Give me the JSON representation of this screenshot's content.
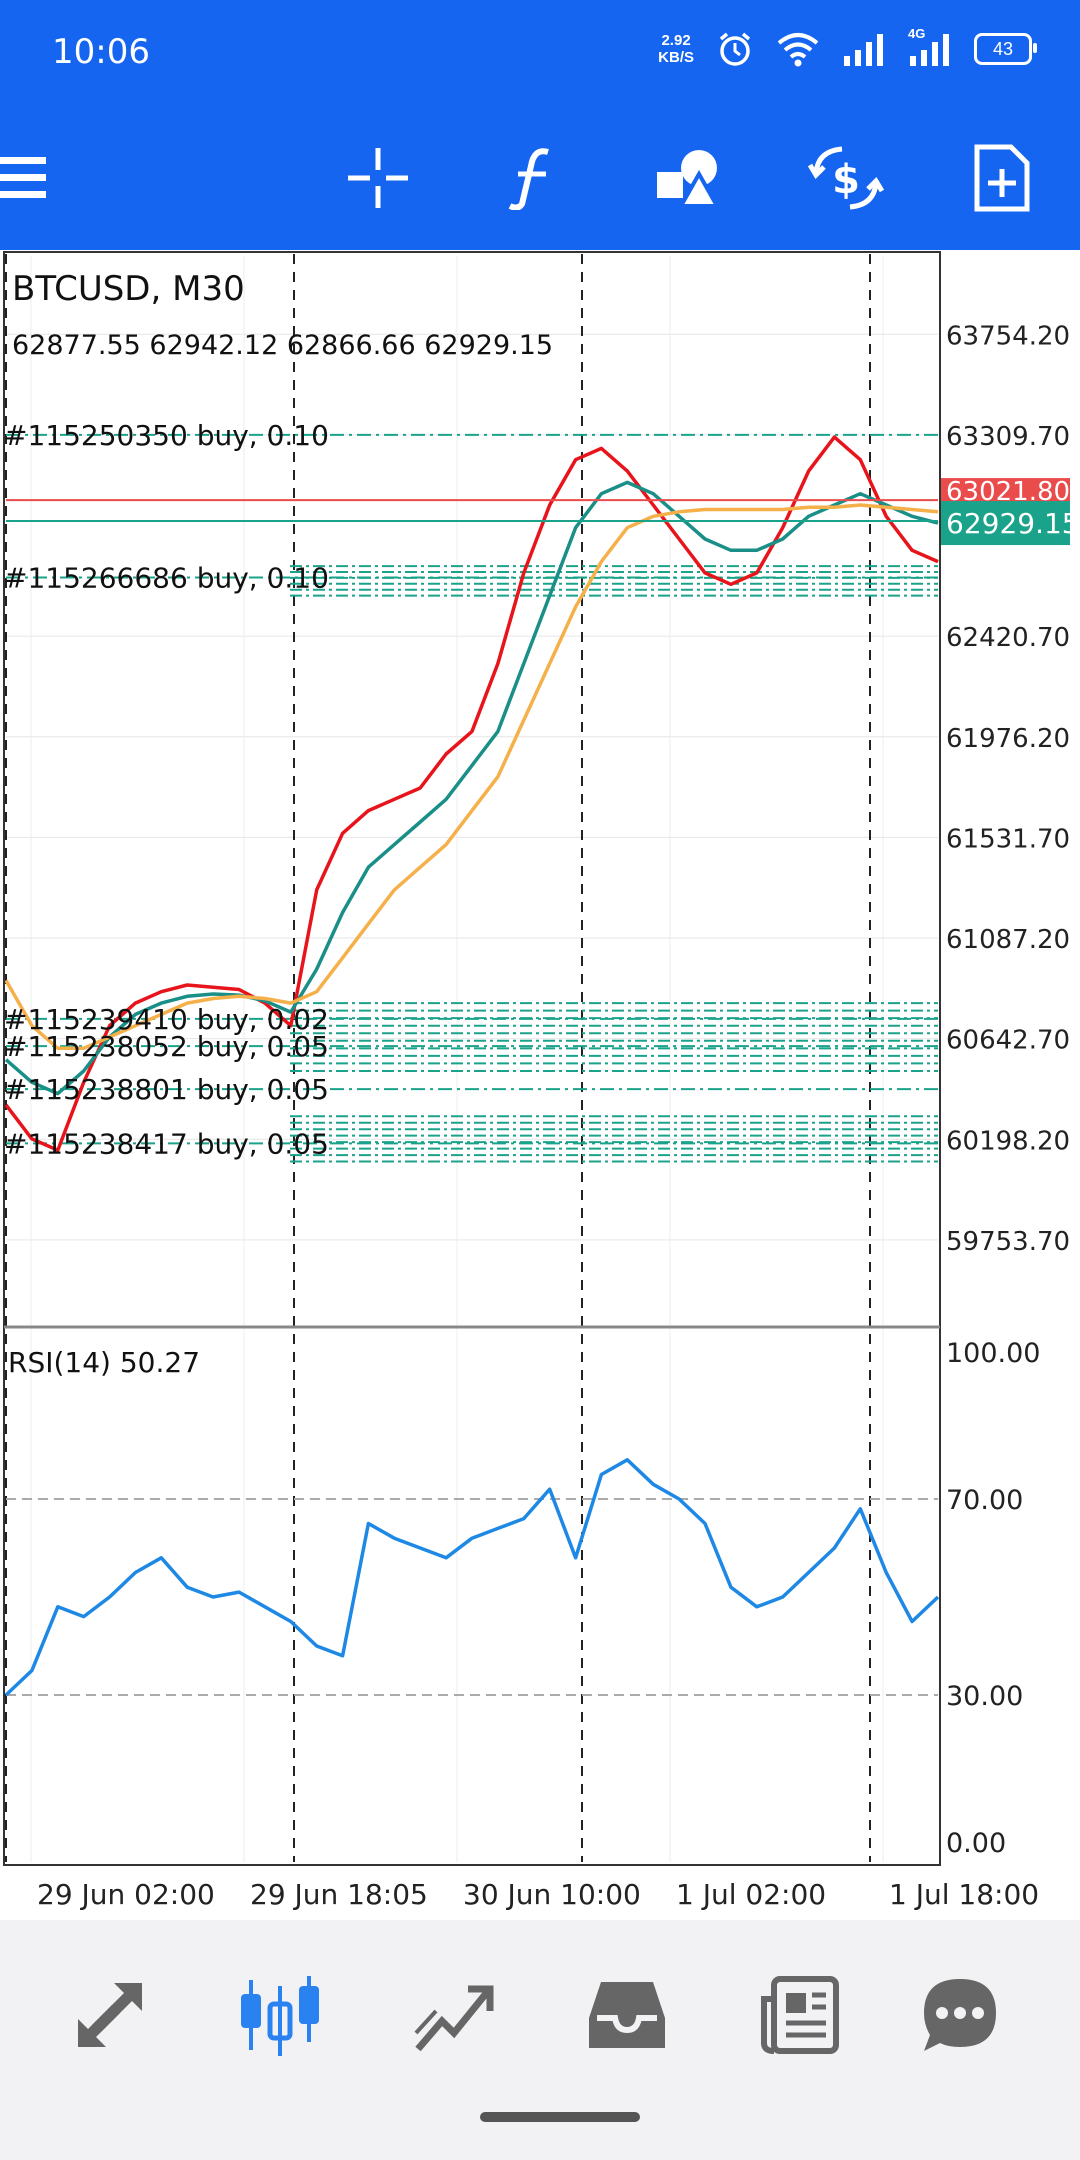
{
  "status_bar": {
    "time": "10:06",
    "net_speed_value": "2.92",
    "net_speed_unit": "KB/S",
    "network_label": "4G",
    "battery": "43"
  },
  "toolbar": {
    "icons": [
      "menu-icon",
      "crosshair-icon",
      "indicators-icon",
      "objects-icon",
      "trade-icon",
      "new-order-icon"
    ]
  },
  "chart": {
    "symbol": "BTCUSD, M30",
    "ohlc": "62877.55 62942.12 62866.66 62929.15",
    "bid_price": "62929.15",
    "ask_price": "63021.80",
    "price_ticks": [
      "63754.20",
      "63309.70",
      "62420.70",
      "61976.20",
      "61531.70",
      "61087.20",
      "60642.70",
      "60198.20",
      "59753.70"
    ],
    "time_ticks": [
      "29 Jun 02:00",
      "29 Jun 18:05",
      "30 Jun 10:00",
      "1 Jul 02:00",
      "1 Jul 18:00"
    ],
    "orders": [
      {
        "label": "#115250350 buy, 0.10"
      },
      {
        "label": "#115266686 buy, 0.10"
      },
      {
        "label": "#115239410 buy, 0.02"
      },
      {
        "label": "#115238052 buy, 0.05"
      },
      {
        "label": "#115238801 buy, 0.05"
      },
      {
        "label": "#115238417 buy, 0.05"
      }
    ],
    "colors": {
      "ma_fast": "#e8141b",
      "ma_mid": "#1a8f87",
      "ma_slow": "#f5b04a",
      "rsi": "#1e88e5",
      "bid": "#1aa38a",
      "ask": "#ea4b4b",
      "order_line": "#1aa38a"
    }
  },
  "rsi": {
    "label": "RSI(14) 50.27",
    "ticks": [
      "100.00",
      "70.00",
      "30.00",
      "0.00"
    ]
  },
  "chart_data": {
    "type": "line",
    "title": "BTCUSD, M30",
    "price_ylim": [
      59400,
      64100
    ],
    "series": [
      {
        "name": "",
        "values": [
          60350,
          60200,
          60150,
          60450,
          60700,
          60800,
          60850,
          60880,
          60870,
          60860,
          60800,
          60700,
          61300,
          61550,
          61650,
          61700,
          61750,
          61900,
          62000,
          62300,
          62700,
          63000,
          63200,
          63250,
          63150,
          63000,
          62850,
          62700,
          62650,
          62700,
          62900,
          63150,
          63300,
          63200,
          62950,
          62800,
          62750
        ]
      },
      {
        "name": "",
        "values": [
          60550,
          60450,
          60400,
          60500,
          60650,
          60750,
          60800,
          60830,
          60840,
          60835,
          60810,
          60760,
          60950,
          61200,
          61400,
          61500,
          61600,
          61700,
          61850,
          62000,
          62300,
          62600,
          62900,
          63050,
          63100,
          63050,
          62950,
          62850,
          62800,
          62800,
          62850,
          62950,
          63000,
          63050,
          63000,
          62950,
          62920
        ]
      },
      {
        "name": "",
        "values": [
          60900,
          60700,
          60600,
          60600,
          60650,
          60700,
          60750,
          60800,
          60820,
          60830,
          60820,
          60800,
          60850,
          61000,
          61150,
          61300,
          61400,
          61500,
          61650,
          61800,
          62050,
          62300,
          62550,
          62750,
          62900,
          62950,
          62970,
          62980,
          62980,
          62980,
          62980,
          62990,
          62990,
          63000,
          62990,
          62980,
          62970
        ]
      }
    ],
    "rsi_values": [
      30,
      35,
      48,
      46,
      50,
      55,
      58,
      52,
      50,
      51,
      48,
      45,
      40,
      38,
      65,
      62,
      60,
      58,
      62,
      64,
      66,
      72,
      58,
      75,
      78,
      73,
      70,
      65,
      52,
      48,
      50,
      55,
      60,
      68,
      55,
      45,
      50
    ],
    "rsi_ylim": [
      0,
      100
    ],
    "rsi_levels": [
      70,
      30
    ],
    "x_tick_labels": [
      "29 Jun 02:00",
      "29 Jun 18:05",
      "30 Jun 10:00",
      "1 Jul 02:00",
      "1 Jul 18:00"
    ]
  }
}
